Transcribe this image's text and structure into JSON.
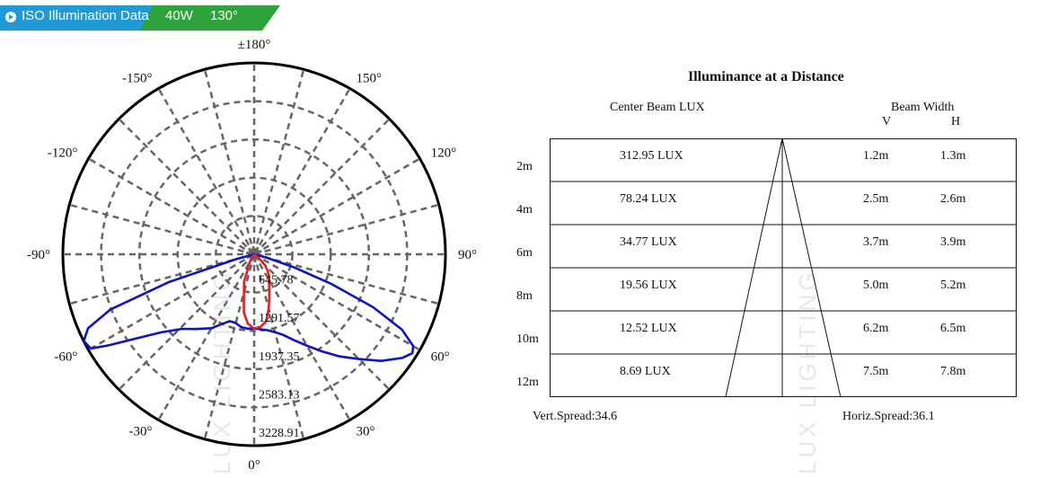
{
  "header": {
    "title": "ISO Illumination  Data",
    "wattage": "40W",
    "beam_angle": "130°",
    "colors": {
      "blue": "#1f9ad6",
      "green": "#2fa33b"
    }
  },
  "watermark": "LUX LIGHTING",
  "chart_data": [
    {
      "type": "polar",
      "angle_labels": [
        {
          "angle": 180,
          "label": "±180°"
        },
        {
          "angle": -150,
          "label": "-150°"
        },
        {
          "angle": 150,
          "label": "150°"
        },
        {
          "angle": -120,
          "label": "-120°"
        },
        {
          "angle": 120,
          "label": "120°"
        },
        {
          "angle": -90,
          "label": "-90°"
        },
        {
          "angle": 90,
          "label": "90°"
        },
        {
          "angle": -60,
          "label": "-60°"
        },
        {
          "angle": 60,
          "label": "60°"
        },
        {
          "angle": -30,
          "label": "-30°"
        },
        {
          "angle": 30,
          "label": "30°"
        },
        {
          "angle": 0,
          "label": "0°"
        }
      ],
      "radial_labels": [
        "645.78",
        "1291.57",
        "1937.35",
        "2583.13",
        "3228.91"
      ],
      "rmax": 3228.91,
      "grid": true,
      "series": [
        {
          "color": "#0a14c8",
          "points": [
            [
              -75,
              300
            ],
            [
              -72,
              1500
            ],
            [
              -69,
              2600
            ],
            [
              -66,
              3070
            ],
            [
              -63,
              3228
            ],
            [
              -60,
              3180
            ],
            [
              -58,
              2900
            ],
            [
              -55,
              2500
            ],
            [
              -50,
              2050
            ],
            [
              -44,
              1750
            ],
            [
              -38,
              1600
            ],
            [
              -30,
              1440
            ],
            [
              -25,
              1300
            ],
            [
              -20,
              1200
            ],
            [
              -15,
              1200
            ],
            [
              -10,
              1250
            ],
            [
              -5,
              1260
            ],
            [
              0,
              1250
            ],
            [
              5,
              1270
            ],
            [
              10,
              1300
            ],
            [
              15,
              1360
            ],
            [
              20,
              1450
            ],
            [
              25,
              1600
            ],
            [
              30,
              1780
            ],
            [
              35,
              2000
            ],
            [
              40,
              2250
            ],
            [
              45,
              2500
            ],
            [
              50,
              2800
            ],
            [
              55,
              3050
            ],
            [
              58,
              3150
            ],
            [
              60,
              3100
            ],
            [
              63,
              2800
            ],
            [
              66,
              2200
            ],
            [
              69,
              1400
            ],
            [
              72,
              700
            ],
            [
              75,
              200
            ]
          ]
        },
        {
          "color": "#e62020",
          "points": [
            [
              -30,
              150
            ],
            [
              -20,
              500
            ],
            [
              -10,
              1000
            ],
            [
              -5,
              1180
            ],
            [
              0,
              1250
            ],
            [
              5,
              1230
            ],
            [
              10,
              1150
            ],
            [
              15,
              950
            ],
            [
              20,
              750
            ],
            [
              25,
              600
            ],
            [
              30,
              500
            ],
            [
              35,
              430
            ],
            [
              40,
              350
            ],
            [
              45,
              250
            ],
            [
              50,
              120
            ]
          ]
        }
      ]
    },
    {
      "type": "table",
      "title": "Illuminance at a Distance",
      "center_header": "Center Beam LUX",
      "beam_header": "Beam Width",
      "v_header": "V",
      "h_header": "H",
      "rows": [
        {
          "distance": "2m",
          "lux": "312.95 LUX",
          "v": "1.2m",
          "h": "1.3m"
        },
        {
          "distance": "4m",
          "lux": "78.24 LUX",
          "v": "2.5m",
          "h": "2.6m"
        },
        {
          "distance": "6m",
          "lux": "34.77 LUX",
          "v": "3.7m",
          "h": "3.9m"
        },
        {
          "distance": "8m",
          "lux": "19.56 LUX",
          "v": "5.0m",
          "h": "5.2m"
        },
        {
          "distance": "10m",
          "lux": "12.52 LUX",
          "v": "6.2m",
          "h": "6.5m"
        },
        {
          "distance": "12m",
          "lux": "8.69 LUX",
          "v": "7.5m",
          "h": "7.8m"
        }
      ],
      "vert_spread": "Vert.Spread:34.6",
      "horiz_spread": "Horiz.Spread:36.1"
    }
  ]
}
